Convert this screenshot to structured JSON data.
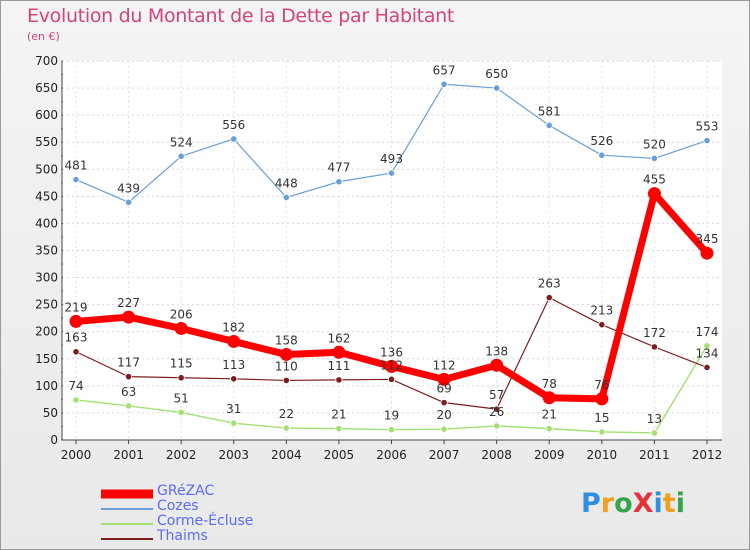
{
  "header": {
    "title": "Evolution du Montant de la Dette par Habitant",
    "subtitle": "(en €)"
  },
  "logo": {
    "text": "ProXiti",
    "letters": [
      {
        "ch": "P",
        "color": "#2f8fdf"
      },
      {
        "ch": "r",
        "color": "#f0a020"
      },
      {
        "ch": "o",
        "color": "#35a54a"
      },
      {
        "ch": "X",
        "color": "#e8303a"
      },
      {
        "ch": "i",
        "color": "#2f8fdf"
      },
      {
        "ch": "t",
        "color": "#f0a020"
      },
      {
        "ch": "i",
        "color": "#35a54a"
      }
    ]
  },
  "chart_data": {
    "type": "line",
    "title": "Evolution du Montant de la Dette par Habitant",
    "subtitle": "(en €)",
    "xlabel": "",
    "ylabel": "",
    "categories": [
      "2000",
      "2001",
      "2002",
      "2003",
      "2004",
      "2005",
      "2006",
      "2007",
      "2008",
      "2009",
      "2010",
      "2011",
      "2012"
    ],
    "ylim": [
      0,
      700
    ],
    "yticks": [
      0,
      50,
      100,
      150,
      200,
      250,
      300,
      350,
      400,
      450,
      500,
      550,
      600,
      650,
      700
    ],
    "grid": true,
    "legend_position": "bottom-left",
    "series": [
      {
        "name": "GRéZAC",
        "color": "#ff0000",
        "values": [
          219,
          227,
          206,
          182,
          158,
          162,
          136,
          112,
          138,
          78,
          76,
          455,
          345
        ]
      },
      {
        "name": "Cozes",
        "color": "#6a9ed6",
        "values": [
          481,
          439,
          524,
          556,
          448,
          477,
          493,
          657,
          650,
          581,
          526,
          520,
          553
        ]
      },
      {
        "name": "Corme-Écluse",
        "color": "#a4df74",
        "values": [
          74,
          63,
          51,
          31,
          22,
          21,
          19,
          20,
          26,
          21,
          15,
          13,
          174
        ]
      },
      {
        "name": "Thaims",
        "color": "#7b1e1e",
        "values": [
          163,
          117,
          115,
          113,
          110,
          111,
          112,
          69,
          57,
          263,
          213,
          172,
          134
        ]
      }
    ]
  }
}
